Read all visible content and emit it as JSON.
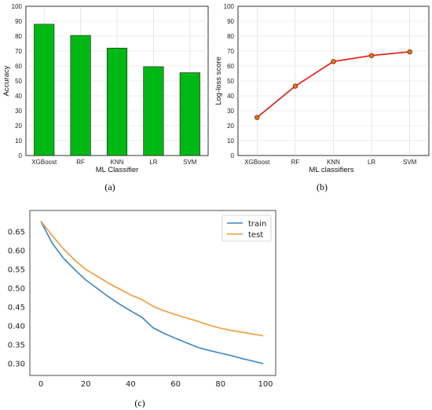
{
  "chart_data": [
    {
      "panel": "(a)",
      "type": "bar",
      "categories": [
        "XGBoost",
        "RF",
        "KNN",
        "LR",
        "SVM"
      ],
      "values": [
        88,
        80.5,
        72,
        59.5,
        55.5
      ],
      "xlabel": "ML Classifier",
      "ylabel": "Accuracy",
      "ylim": [
        0,
        100
      ],
      "yticks": [
        "0",
        "10",
        "20",
        "30",
        "40",
        "50",
        "60",
        "70",
        "80",
        "90",
        "100"
      ],
      "bar_color": "#00b814",
      "grid": true
    },
    {
      "panel": "(b)",
      "type": "line",
      "categories": [
        "XGBoost",
        "RF",
        "KNN",
        "LR",
        "SVM"
      ],
      "values": [
        25.5,
        46.5,
        63,
        67,
        69.5
      ],
      "xlabel": "ML classifiers",
      "ylabel": "Log-loss score",
      "ylim": [
        0,
        100
      ],
      "yticks": [
        "0",
        "10",
        "20",
        "30",
        "40",
        "50",
        "60",
        "70",
        "80",
        "90",
        "100"
      ],
      "line_color": "#e8180c",
      "marker_color": "#e07a10",
      "grid": true
    },
    {
      "panel": "(c)",
      "type": "line",
      "x": [
        0,
        5,
        10,
        15,
        20,
        25,
        30,
        35,
        40,
        45,
        50,
        55,
        60,
        65,
        70,
        75,
        80,
        85,
        90,
        95,
        99
      ],
      "xlim": [
        0,
        99
      ],
      "xticks": [
        "0",
        "20",
        "40",
        "60",
        "80",
        "100"
      ],
      "ylim": [
        0.29,
        0.69
      ],
      "yticks": [
        "0.30",
        "0.35",
        "0.40",
        "0.45",
        "0.50",
        "0.55",
        "0.60",
        "0.65"
      ],
      "series": [
        {
          "name": "train",
          "color": "#3a86c8",
          "values": [
            0.678,
            0.62,
            0.58,
            0.55,
            0.522,
            0.5,
            0.478,
            0.458,
            0.44,
            0.423,
            0.395,
            0.38,
            0.367,
            0.355,
            0.343,
            0.335,
            0.328,
            0.321,
            0.313,
            0.306,
            0.3
          ]
        },
        {
          "name": "test",
          "color": "#f49a38",
          "values": [
            0.678,
            0.64,
            0.605,
            0.575,
            0.55,
            0.532,
            0.514,
            0.498,
            0.482,
            0.47,
            0.452,
            0.44,
            0.43,
            0.421,
            0.412,
            0.402,
            0.394,
            0.388,
            0.383,
            0.378,
            0.374
          ]
        }
      ],
      "legend": "top-right",
      "grid": false
    }
  ],
  "labels": {
    "a": "(a)",
    "b": "(b)",
    "c": "(c)"
  }
}
